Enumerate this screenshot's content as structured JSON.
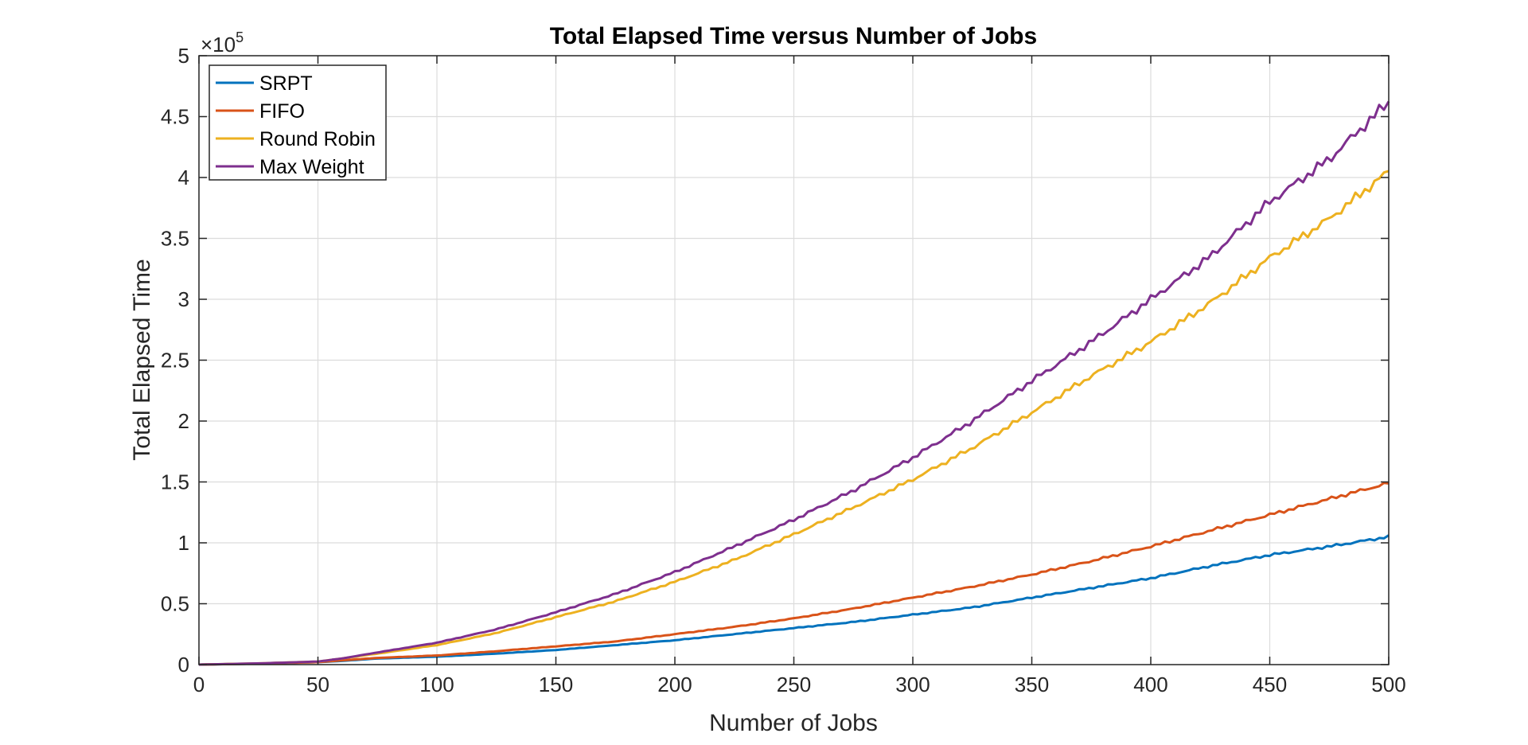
{
  "chart_data": {
    "type": "line",
    "title": "Total Elapsed Time versus Number of Jobs",
    "xlabel": "Number of Jobs",
    "ylabel": "Total Elapsed Time",
    "y_exponent": {
      "base": "×10",
      "power": "5"
    },
    "xlim": [
      0,
      500
    ],
    "ylim": [
      0,
      5
    ],
    "xticks": [
      0,
      50,
      100,
      150,
      200,
      250,
      300,
      350,
      400,
      450,
      500
    ],
    "yticks": [
      0,
      0.5,
      1,
      1.5,
      2,
      2.5,
      3,
      3.5,
      4,
      4.5,
      5
    ],
    "xtick_labels": [
      "0",
      "50",
      "100",
      "150",
      "200",
      "250",
      "300",
      "350",
      "400",
      "450",
      "500"
    ],
    "ytick_labels": [
      "0",
      "0.5",
      "1",
      "1.5",
      "2",
      "2.5",
      "3",
      "3.5",
      "4",
      "4.5",
      "5"
    ],
    "grid": true,
    "legend_position": "top-left",
    "x": [
      0,
      25,
      50,
      60,
      75,
      100,
      125,
      150,
      175,
      200,
      225,
      250,
      275,
      300,
      325,
      350,
      375,
      400,
      425,
      450,
      475,
      500
    ],
    "series": [
      {
        "name": "SRPT",
        "color": "#0072BD",
        "values": [
          0,
          0.008,
          0.02,
          0.03,
          0.05,
          0.065,
          0.09,
          0.12,
          0.16,
          0.2,
          0.25,
          0.3,
          0.35,
          0.41,
          0.47,
          0.55,
          0.63,
          0.71,
          0.81,
          0.9,
          0.97,
          1.05
        ]
      },
      {
        "name": "FIFO",
        "color": "#D95319",
        "values": [
          0,
          0.008,
          0.02,
          0.035,
          0.055,
          0.075,
          0.11,
          0.15,
          0.19,
          0.25,
          0.31,
          0.38,
          0.46,
          0.55,
          0.64,
          0.74,
          0.85,
          0.97,
          1.1,
          1.23,
          1.36,
          1.49
        ]
      },
      {
        "name": "Round Robin",
        "color": "#EDB120",
        "values": [
          0,
          0.01,
          0.025,
          0.05,
          0.09,
          0.16,
          0.26,
          0.39,
          0.52,
          0.68,
          0.86,
          1.07,
          1.29,
          1.52,
          1.78,
          2.07,
          2.37,
          2.65,
          2.97,
          3.34,
          3.66,
          4.05
        ]
      },
      {
        "name": "Max Weight",
        "color": "#7E2F8E",
        "values": [
          0,
          0.01,
          0.025,
          0.05,
          0.1,
          0.18,
          0.29,
          0.43,
          0.58,
          0.76,
          0.97,
          1.19,
          1.43,
          1.7,
          2.0,
          2.33,
          2.65,
          3.0,
          3.35,
          3.8,
          4.15,
          4.62
        ]
      }
    ]
  }
}
